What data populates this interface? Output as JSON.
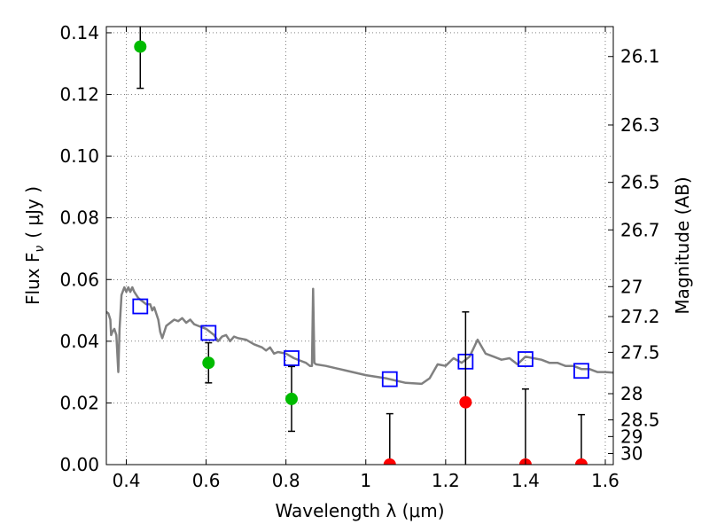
{
  "chart_data": {
    "type": "scatter",
    "xlabel": "Wavelength  λ (μm)",
    "ylabel_left": "Flux  F",
    "ylabel_left_sub": "ν",
    "ylabel_left_unit": "( μJy )",
    "ylabel_right": "Magnitude (AB)",
    "xlim": [
      0.35,
      1.62
    ],
    "ylim": [
      0.0,
      0.142
    ],
    "grid": true,
    "x_ticks": [
      0.4,
      0.6,
      0.8,
      1.0,
      1.2,
      1.4,
      1.6
    ],
    "x_tick_labels": [
      "0.4",
      "0.6",
      "0.8",
      "1",
      "1.2",
      "1.4",
      "1.6"
    ],
    "y_ticks": [
      0.0,
      0.02,
      0.04,
      0.06,
      0.08,
      0.1,
      0.12,
      0.14
    ],
    "y_tick_labels": [
      "0.00",
      "0.02",
      "0.04",
      "0.06",
      "0.08",
      "0.10",
      "0.12",
      "0.14"
    ],
    "right_ticks": [
      {
        "label": "26.1",
        "flux": 0.1323
      },
      {
        "label": "26.3",
        "flux": 0.1101
      },
      {
        "label": "26.5",
        "flux": 0.0915
      },
      {
        "label": "26.7",
        "flux": 0.0761
      },
      {
        "label": "27",
        "flux": 0.0577
      },
      {
        "label": "27.2",
        "flux": 0.048
      },
      {
        "label": "27.5",
        "flux": 0.0364
      },
      {
        "label": "28",
        "flux": 0.023
      },
      {
        "label": "28.5",
        "flux": 0.0145
      },
      {
        "label": "29",
        "flux": 0.0091
      },
      {
        "label": "30",
        "flux": 0.0036
      }
    ],
    "series": [
      {
        "kind": "model_spectrum",
        "color": "#808080",
        "points": [
          [
            0.35,
            0.0495
          ],
          [
            0.355,
            0.049
          ],
          [
            0.36,
            0.047
          ],
          [
            0.362,
            0.042
          ],
          [
            0.365,
            0.043
          ],
          [
            0.37,
            0.044
          ],
          [
            0.375,
            0.042
          ],
          [
            0.38,
            0.03
          ],
          [
            0.383,
            0.044
          ],
          [
            0.388,
            0.055
          ],
          [
            0.395,
            0.0575
          ],
          [
            0.4,
            0.056
          ],
          [
            0.405,
            0.0575
          ],
          [
            0.41,
            0.056
          ],
          [
            0.415,
            0.0575
          ],
          [
            0.42,
            0.056
          ],
          [
            0.425,
            0.055
          ],
          [
            0.43,
            0.054
          ],
          [
            0.44,
            0.053
          ],
          [
            0.45,
            0.052
          ],
          [
            0.46,
            0.052
          ],
          [
            0.465,
            0.05
          ],
          [
            0.47,
            0.051
          ],
          [
            0.48,
            0.047
          ],
          [
            0.485,
            0.043
          ],
          [
            0.49,
            0.041
          ],
          [
            0.5,
            0.045
          ],
          [
            0.51,
            0.046
          ],
          [
            0.52,
            0.047
          ],
          [
            0.53,
            0.0465
          ],
          [
            0.54,
            0.0475
          ],
          [
            0.55,
            0.046
          ],
          [
            0.56,
            0.047
          ],
          [
            0.57,
            0.0455
          ],
          [
            0.58,
            0.045
          ],
          [
            0.59,
            0.0445
          ],
          [
            0.6,
            0.044
          ],
          [
            0.61,
            0.043
          ],
          [
            0.62,
            0.042
          ],
          [
            0.63,
            0.04
          ],
          [
            0.64,
            0.0415
          ],
          [
            0.65,
            0.042
          ],
          [
            0.66,
            0.04
          ],
          [
            0.67,
            0.0415
          ],
          [
            0.68,
            0.041
          ],
          [
            0.7,
            0.0405
          ],
          [
            0.72,
            0.039
          ],
          [
            0.74,
            0.038
          ],
          [
            0.75,
            0.037
          ],
          [
            0.76,
            0.038
          ],
          [
            0.77,
            0.036
          ],
          [
            0.78,
            0.0365
          ],
          [
            0.8,
            0.036
          ],
          [
            0.82,
            0.0345
          ],
          [
            0.84,
            0.0335
          ],
          [
            0.85,
            0.033
          ],
          [
            0.86,
            0.032
          ],
          [
            0.865,
            0.032
          ],
          [
            0.868,
            0.057
          ],
          [
            0.871,
            0.033
          ],
          [
            0.875,
            0.0325
          ],
          [
            0.9,
            0.032
          ],
          [
            0.95,
            0.0305
          ],
          [
            1.0,
            0.029
          ],
          [
            1.05,
            0.028
          ],
          [
            1.1,
            0.0265
          ],
          [
            1.14,
            0.0262
          ],
          [
            1.16,
            0.028
          ],
          [
            1.18,
            0.0325
          ],
          [
            1.2,
            0.032
          ],
          [
            1.22,
            0.0345
          ],
          [
            1.24,
            0.033
          ],
          [
            1.26,
            0.035
          ],
          [
            1.28,
            0.0405
          ],
          [
            1.3,
            0.036
          ],
          [
            1.32,
            0.035
          ],
          [
            1.34,
            0.034
          ],
          [
            1.36,
            0.0345
          ],
          [
            1.38,
            0.0325
          ],
          [
            1.4,
            0.035
          ],
          [
            1.42,
            0.0345
          ],
          [
            1.44,
            0.034
          ],
          [
            1.46,
            0.033
          ],
          [
            1.48,
            0.033
          ],
          [
            1.5,
            0.032
          ],
          [
            1.52,
            0.032
          ],
          [
            1.54,
            0.031
          ],
          [
            1.56,
            0.031
          ],
          [
            1.58,
            0.03
          ],
          [
            1.6,
            0.03
          ],
          [
            1.62,
            0.0298
          ]
        ]
      },
      {
        "kind": "model_photometry",
        "marker": "open-square",
        "color": "#0000ff",
        "points": [
          [
            0.435,
            0.0513
          ],
          [
            0.606,
            0.0427
          ],
          [
            0.814,
            0.0345
          ],
          [
            1.06,
            0.0277
          ],
          [
            1.25,
            0.0334
          ],
          [
            1.4,
            0.0342
          ],
          [
            1.54,
            0.0304
          ]
        ]
      },
      {
        "kind": "detections",
        "marker": "filled-circle",
        "color": "#00bb00",
        "points": [
          {
            "x": 0.435,
            "y": 0.1355,
            "err": 0.0135
          },
          {
            "x": 0.606,
            "y": 0.033,
            "err": 0.0065
          },
          {
            "x": 0.814,
            "y": 0.0213,
            "err": 0.0105
          }
        ]
      },
      {
        "kind": "non_detections",
        "marker": "filled-circle",
        "color": "#ff0000",
        "points": [
          {
            "x": 1.06,
            "y": 0.0,
            "err": 0.0165
          },
          {
            "x": 1.25,
            "y": 0.0202,
            "err": 0.0293
          },
          {
            "x": 1.4,
            "y": 0.0,
            "err": 0.0245
          },
          {
            "x": 1.54,
            "y": 0.0,
            "err": 0.0162
          }
        ]
      }
    ]
  }
}
